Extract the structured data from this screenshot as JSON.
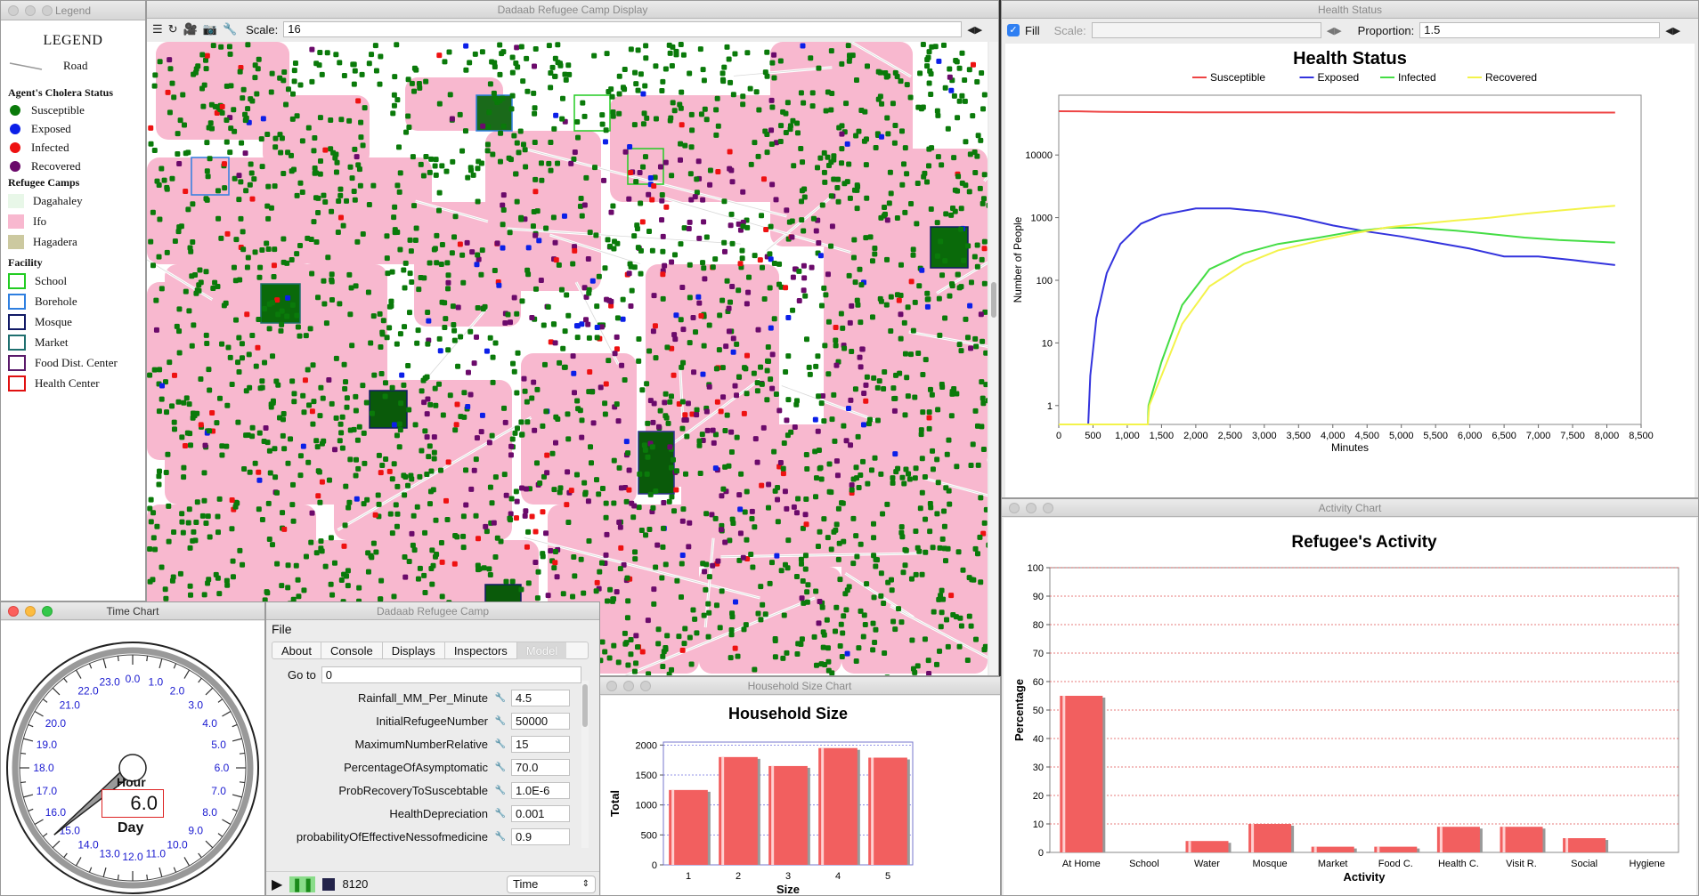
{
  "legend": {
    "window_title": "Legend",
    "heading": "LEGEND",
    "road_label": "Road",
    "status_heading": "Agent's Cholera Status",
    "statuses": [
      {
        "label": "Susceptible",
        "color": "#0a7a0a"
      },
      {
        "label": "Exposed",
        "color": "#0b1fe8"
      },
      {
        "label": "Infected",
        "color": "#ee1111"
      },
      {
        "label": "Recovered",
        "color": "#6b0a6b"
      }
    ],
    "camps_heading": "Refugee Camps",
    "camps": [
      {
        "label": "Dagahaley",
        "color": "#e8f7e8"
      },
      {
        "label": "Ifo",
        "color": "#f8b8cf"
      },
      {
        "label": "Hagadera",
        "color": "#ccc9a0"
      }
    ],
    "facility_heading": "Facility",
    "facilities": [
      {
        "label": "School",
        "color": "#22cc22"
      },
      {
        "label": "Borehole",
        "color": "#2f7fe0"
      },
      {
        "label": "Mosque",
        "color": "#111a66"
      },
      {
        "label": "Market",
        "color": "#1f6f6f"
      },
      {
        "label": "Food Dist. Center",
        "color": "#5a1a6a"
      },
      {
        "label": "Health Center",
        "color": "#e01010"
      }
    ]
  },
  "map_window": {
    "title": "Dadaab Refugee Camp Display",
    "scale_label": "Scale:",
    "scale_value": "16"
  },
  "health_window": {
    "title": "Health Status",
    "fill_label": "Fill",
    "scale_label": "Scale:",
    "scale_value": "",
    "proportion_label": "Proportion:",
    "proportion_value": "1.5"
  },
  "activity_window": {
    "title": "Activity Chart"
  },
  "household_window": {
    "title": "Household Size Chart"
  },
  "time_window": {
    "title": "Time Chart",
    "hour_label": "Hour",
    "day_label": "Day",
    "value": "6.0",
    "dial_labels": [
      "0.0",
      "1.0",
      "2.0",
      "3.0",
      "4.0",
      "5.0",
      "6.0",
      "7.0",
      "8.0",
      "9.0",
      "10.0",
      "11.0",
      "12.0",
      "13.0",
      "14.0",
      "15.0",
      "16.0",
      "17.0",
      "18.0",
      "19.0",
      "20.0",
      "21.0",
      "22.0",
      "23.0"
    ],
    "hand_hour": 15.3
  },
  "console_window": {
    "title": "Dadaab Refugee Camp",
    "menu_file": "File",
    "tabs": [
      "About",
      "Console",
      "Displays",
      "Inspectors",
      "Model"
    ],
    "goto_label": "Go to",
    "goto_value": "0",
    "params": [
      {
        "label": "Rainfall_MM_Per_Minute",
        "value": "4.5"
      },
      {
        "label": "InitialRefugeeNumber",
        "value": "50000"
      },
      {
        "label": "MaximumNumberRelative",
        "value": "15"
      },
      {
        "label": "PercentageOfAsymptomatic",
        "value": "70.0"
      },
      {
        "label": "ProbRecoveryToSuscebtable",
        "value": "1.0E-6"
      },
      {
        "label": "HealthDepreciation",
        "value": "0.001"
      },
      {
        "label": "probabilityOfEffectiveNessofmedicine",
        "value": "0.9"
      }
    ],
    "step_count": "8120",
    "time_select": "Time"
  },
  "chart_data": [
    {
      "id": "health",
      "type": "line",
      "title": "Health Status",
      "xlabel": "Minutes",
      "ylabel": "Number of People",
      "yscale": "log",
      "xlim": [
        0,
        8500
      ],
      "ylim": [
        0.5,
        90000
      ],
      "xticks": [
        "0",
        "500",
        "1,000",
        "1,500",
        "2,000",
        "2,500",
        "3,000",
        "3,500",
        "4,000",
        "4,500",
        "5,000",
        "5,500",
        "6,000",
        "6,500",
        "7,000",
        "7,500",
        "8,000",
        "8,500"
      ],
      "yticks": [
        {
          "v": 1,
          "label": "1"
        },
        {
          "v": 10,
          "label": "10"
        },
        {
          "v": 100,
          "label": "100"
        },
        {
          "v": 1000,
          "label": "1000"
        },
        {
          "v": 10000,
          "label": "10000"
        }
      ],
      "legend_position": "top",
      "series": [
        {
          "name": "Susceptible",
          "color": "#ee4444",
          "x": [
            0,
            300,
            600,
            1000,
            2000,
            4000,
            6000,
            8120
          ],
          "y": [
            50000,
            49800,
            49000,
            48500,
            48000,
            47800,
            47700,
            47600
          ]
        },
        {
          "name": "Exposed",
          "color": "#3333dd",
          "x": [
            0,
            430,
            460,
            550,
            700,
            900,
            1200,
            1500,
            2000,
            2500,
            3000,
            3500,
            4000,
            4500,
            5000,
            5500,
            6000,
            6500,
            7000,
            7500,
            8120
          ],
          "y": [
            0.5,
            0.5,
            3,
            25,
            130,
            380,
            800,
            1100,
            1400,
            1400,
            1250,
            1000,
            750,
            600,
            500,
            400,
            320,
            240,
            240,
            210,
            175
          ]
        },
        {
          "name": "Infected",
          "color": "#44dd44",
          "x": [
            0,
            1300,
            1310,
            1500,
            1800,
            2200,
            2700,
            3200,
            3800,
            4300,
            4800,
            5200,
            5800,
            6200,
            6800,
            7300,
            8120
          ],
          "y": [
            0.5,
            0.5,
            1,
            5,
            40,
            150,
            270,
            380,
            480,
            600,
            690,
            690,
            620,
            560,
            480,
            440,
            400
          ]
        },
        {
          "name": "Recovered",
          "color": "#f3f34a",
          "x": [
            0,
            1300,
            1320,
            1500,
            1800,
            2200,
            2700,
            3200,
            3800,
            4300,
            4800,
            5300,
            5800,
            6300,
            6800,
            7300,
            7800,
            8120
          ],
          "y": [
            0.5,
            0.5,
            1,
            3,
            20,
            80,
            180,
            300,
            430,
            560,
            700,
            800,
            900,
            1000,
            1150,
            1300,
            1450,
            1550
          ]
        }
      ]
    },
    {
      "id": "activity",
      "type": "bar",
      "title": "Refugee's Activity",
      "xlabel": "Activity",
      "ylabel": "Percentage",
      "ylim": [
        0,
        100
      ],
      "yticks": [
        0,
        10,
        20,
        30,
        40,
        50,
        60,
        70,
        80,
        90,
        100
      ],
      "categories": [
        "At Home",
        "School",
        "Water",
        "Mosque",
        "Market",
        "Food C.",
        "Health C.",
        "Visit R.",
        "Social",
        "Hygiene"
      ],
      "values": [
        55,
        0,
        4,
        10,
        2,
        2,
        9,
        9,
        5,
        0
      ],
      "bar_color": "#f25f5f"
    },
    {
      "id": "household",
      "type": "bar",
      "title": "Household Size",
      "xlabel": "Size",
      "ylabel": "Total",
      "ylim": [
        0,
        2050
      ],
      "yticks": [
        0,
        500,
        1000,
        1500,
        2000
      ],
      "categories": [
        "1",
        "2",
        "3",
        "4",
        "5"
      ],
      "values": [
        1250,
        1800,
        1650,
        1950,
        1790
      ],
      "bar_color": "#f25f5f"
    }
  ]
}
